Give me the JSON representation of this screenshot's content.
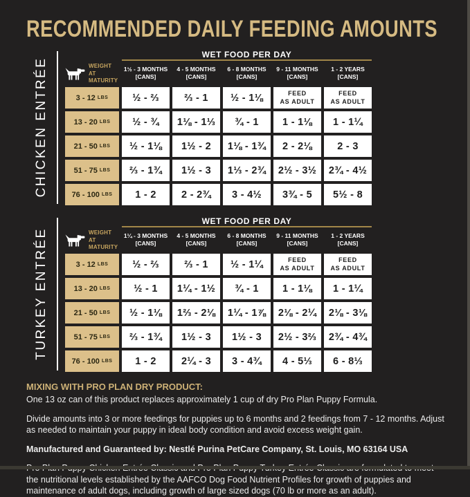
{
  "page": {
    "title": "RECOMMENDED DAILY FEEDING AMOUNTS",
    "colors": {
      "background": "#222020",
      "title_gold": "#d5ba82",
      "weight_cell_tan": "#dcc08a",
      "banner_underline_gold": "#a28749",
      "cell_white": "#ffffff",
      "cell_text": "#1d1d1d"
    }
  },
  "tables": [
    {
      "side_label": "CHICKEN ENTRÉE",
      "banner": "WET FOOD PER DAY",
      "weight_header": [
        "WEIGHT AT",
        "MATURITY"
      ],
      "columns": [
        {
          "range": "1½ - 3 MONTHS",
          "unit": "[CANS]"
        },
        {
          "range": "4 - 5 MONTHS",
          "unit": "[CANS]"
        },
        {
          "range": "6 - 8 MONTHS",
          "unit": "[CANS]"
        },
        {
          "range": "9 - 11 MONTHS",
          "unit": "[CANS]"
        },
        {
          "range": "1 - 2 YEARS",
          "unit": "[CANS]"
        }
      ],
      "rows": [
        {
          "weight": "3 - 12",
          "unit": "LBS",
          "values": [
            "½ - ⅔",
            "⅔ - 1",
            "½ - 1⅛",
            "FEED\nAS ADULT",
            "FEED\nAS ADULT"
          ]
        },
        {
          "weight": "13 - 20",
          "unit": "LBS",
          "values": [
            "½ - ¾",
            "1⅛ - 1⅓",
            "¾ - 1",
            "1 - 1⅛",
            "1 - 1¼"
          ]
        },
        {
          "weight": "21 - 50",
          "unit": "LBS",
          "values": [
            "½ - 1⅛",
            "1½ - 2",
            "1⅛ - 1¾",
            "2 - 2⅛",
            "2 - 3"
          ]
        },
        {
          "weight": "51 - 75",
          "unit": "LBS",
          "values": [
            "⅔ - 1¾",
            "1½ - 3",
            "1⅓ - 2¾",
            "2½ - 3½",
            "2¾ - 4½"
          ]
        },
        {
          "weight": "76 - 100",
          "unit": "LBS",
          "values": [
            "1 - 2",
            "2 - 2¾",
            "3 - 4½",
            "3¾ - 5",
            "5½ - 8"
          ]
        }
      ]
    },
    {
      "side_label": "TURKEY ENTRÉE",
      "banner": "WET FOOD PER DAY",
      "weight_header": [
        "WEIGHT AT",
        "MATURITY"
      ],
      "columns": [
        {
          "range": "1¼ - 3 MONTHS",
          "unit": "[CANS]"
        },
        {
          "range": "4 - 5 MONTHS",
          "unit": "[CANS]"
        },
        {
          "range": "6 - 8 MONTHS",
          "unit": "[CANS]"
        },
        {
          "range": "9 - 11 MONTHS",
          "unit": "[CANS]"
        },
        {
          "range": "1 - 2 YEARS",
          "unit": "[CANS]"
        }
      ],
      "rows": [
        {
          "weight": "3 - 12",
          "unit": "LBS",
          "values": [
            "½ - ⅔",
            "⅔ - 1",
            "½ - 1¼",
            "FEED\nAS ADULT",
            "FEED\nAS ADULT"
          ]
        },
        {
          "weight": "13 - 20",
          "unit": "LBS",
          "values": [
            "½ - 1",
            "1¼ - 1½",
            "¾ - 1",
            "1 - 1⅛",
            "1 - 1¼"
          ]
        },
        {
          "weight": "21 - 50",
          "unit": "LBS",
          "values": [
            "½ - 1⅛",
            "1⅔ - 2⅛",
            "1¼ - 1⅞",
            "2⅛ - 2¼",
            "2⅛ - 3⅛"
          ]
        },
        {
          "weight": "51 - 75",
          "unit": "LBS",
          "values": [
            "⅔ - 1¾",
            "1½ - 3",
            "1½ - 3",
            "2½ - 3⅔",
            "2¾ - 4¾"
          ]
        },
        {
          "weight": "76 - 100",
          "unit": "LBS",
          "values": [
            "1 - 2",
            "2¼ - 3",
            "3 - 4¾",
            "4 - 5⅓",
            "6 - 8⅓"
          ]
        }
      ]
    }
  ],
  "footer": {
    "mixing_heading": "MIXING WITH PRO PLAN DRY PRODUCT:",
    "mixing_body": "One 13 oz can of this product replaces approximately 1 cup of dry Pro Plan Puppy Formula.",
    "divide_note": "Divide amounts into 3 or more feedings for puppies up to 6 months and 2 feedings from 7 - 12 months. Adjust as needed to maintain your puppy in ideal body condition and avoid excess weight gain.",
    "manufactured": "Manufactured and Guaranteed by: Nestlé Purina PetCare Company, St. Louis, MO 63164 USA",
    "aafco": "Pro Plan Puppy Chicken Entrée Classic and Pro Plan Puppy Turkey Entrée Classic are formulated to meet the nutritional levels established by the AAFCO Dog Food Nutrient Profiles for growth of puppies and maintenance of adult dogs, including growth of large sized dogs (70 lb or more as an adult)."
  }
}
